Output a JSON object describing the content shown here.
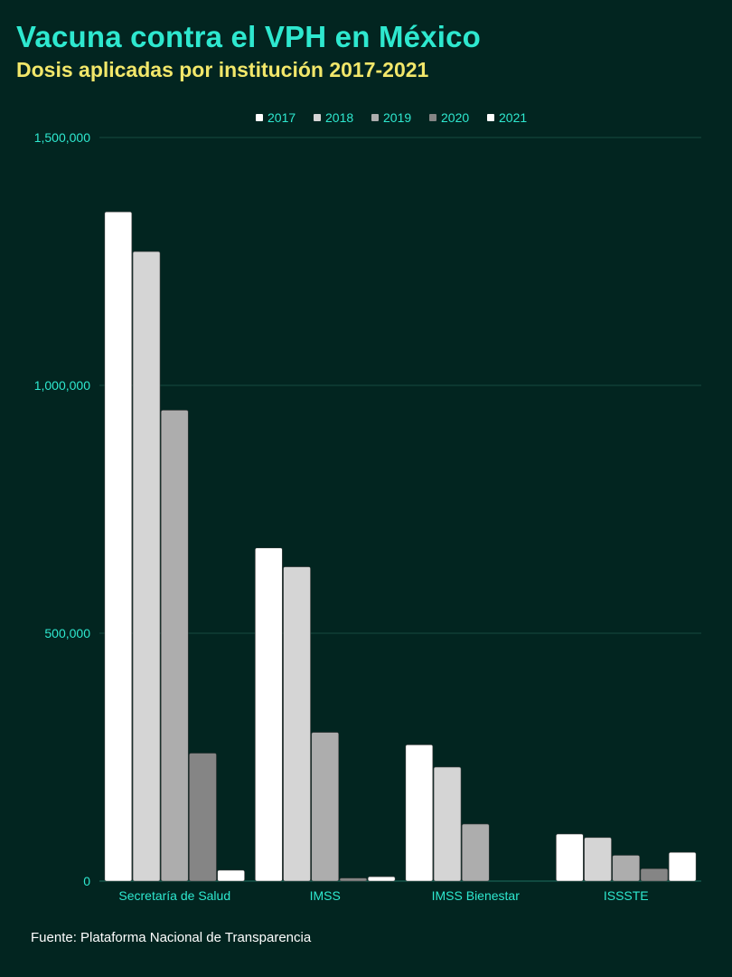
{
  "title": "Vacuna contra el VPH en México",
  "subtitle": "Dosis aplicadas por institución 2017-2021",
  "source": "Fuente: Plataforma Nacional de Transparencia",
  "colors": {
    "background": "#022520",
    "title": "#2ee8cf",
    "subtitle": "#f2e76a",
    "axis_text": "#2ee8cf",
    "grid": "#174b40"
  },
  "chart_data": {
    "type": "bar",
    "categories": [
      "Secretaría de Salud",
      "IMSS",
      "IMSS Bienestar",
      "ISSSTE"
    ],
    "series": [
      {
        "name": "2017",
        "color": "#ffffff",
        "values": [
          1350000,
          672000,
          275000,
          95000
        ]
      },
      {
        "name": "2018",
        "color": "#d5d5d5",
        "values": [
          1270000,
          634000,
          230000,
          88000
        ]
      },
      {
        "name": "2019",
        "color": "#adadad",
        "values": [
          950000,
          300000,
          115000,
          52000
        ]
      },
      {
        "name": "2020",
        "color": "#858585",
        "values": [
          258000,
          6000,
          0,
          25000
        ]
      },
      {
        "name": "2021",
        "color": "#ffffff",
        "values": [
          22000,
          9000,
          0,
          58000
        ]
      }
    ],
    "y_ticks": [
      0,
      500000,
      1000000,
      1500000
    ],
    "y_tick_labels": [
      "0",
      "500,000",
      "1,000,000",
      "1,500,000"
    ],
    "ylim": [
      0,
      1500000
    ],
    "grid": true,
    "legend_position": "top-center"
  }
}
